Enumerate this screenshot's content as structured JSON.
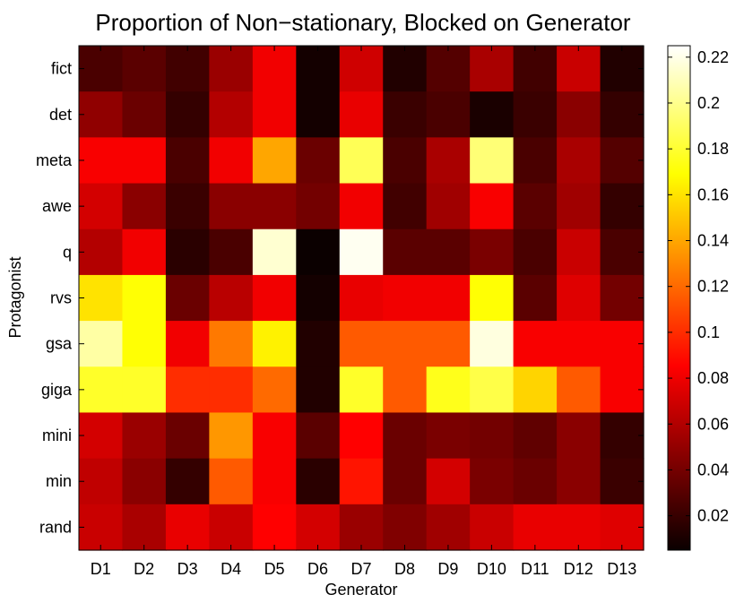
{
  "chart_data": {
    "type": "heatmap",
    "title": "Proportion of Non−stationary, Blocked on Generator",
    "xlabel": "Generator",
    "ylabel": "Protagonist",
    "x_categories": [
      "D1",
      "D2",
      "D3",
      "D4",
      "D5",
      "D6",
      "D7",
      "D8",
      "D9",
      "D10",
      "D11",
      "D12",
      "D13"
    ],
    "y_categories": [
      "fict",
      "det",
      "meta",
      "awe",
      "q",
      "rvs",
      "gsa",
      "giga",
      "mini",
      "min",
      "rand"
    ],
    "values": [
      [
        0.025,
        0.03,
        0.022,
        0.05,
        0.078,
        0.008,
        0.067,
        0.012,
        0.028,
        0.055,
        0.022,
        0.065,
        0.012
      ],
      [
        0.047,
        0.035,
        0.018,
        0.058,
        0.078,
        0.008,
        0.075,
        0.02,
        0.025,
        0.01,
        0.02,
        0.045,
        0.018
      ],
      [
        0.08,
        0.08,
        0.025,
        0.078,
        0.14,
        0.035,
        0.188,
        0.025,
        0.055,
        0.195,
        0.025,
        0.055,
        0.028
      ],
      [
        0.068,
        0.045,
        0.02,
        0.045,
        0.045,
        0.038,
        0.078,
        0.022,
        0.052,
        0.08,
        0.03,
        0.052,
        0.018
      ],
      [
        0.058,
        0.078,
        0.015,
        0.025,
        0.215,
        0.005,
        0.222,
        0.03,
        0.03,
        0.04,
        0.025,
        0.065,
        0.025
      ],
      [
        0.16,
        0.17,
        0.035,
        0.06,
        0.078,
        0.008,
        0.075,
        0.078,
        0.078,
        0.17,
        0.03,
        0.072,
        0.038
      ],
      [
        0.205,
        0.17,
        0.078,
        0.125,
        0.165,
        0.012,
        0.115,
        0.115,
        0.115,
        0.218,
        0.08,
        0.08,
        0.08
      ],
      [
        0.178,
        0.178,
        0.1,
        0.1,
        0.12,
        0.012,
        0.178,
        0.115,
        0.175,
        0.185,
        0.155,
        0.115,
        0.08
      ],
      [
        0.068,
        0.05,
        0.035,
        0.135,
        0.08,
        0.03,
        0.085,
        0.035,
        0.04,
        0.038,
        0.032,
        0.045,
        0.018
      ],
      [
        0.062,
        0.045,
        0.018,
        0.115,
        0.08,
        0.015,
        0.092,
        0.035,
        0.068,
        0.04,
        0.035,
        0.045,
        0.02
      ],
      [
        0.065,
        0.055,
        0.075,
        0.065,
        0.082,
        0.068,
        0.05,
        0.042,
        0.052,
        0.065,
        0.075,
        0.075,
        0.072
      ]
    ],
    "colormap": "hot",
    "clim": [
      0.005,
      0.225
    ],
    "colorbar_ticks": [
      0.02,
      0.04,
      0.06,
      0.08,
      0.1,
      0.12,
      0.14,
      0.16,
      0.18,
      0.2,
      0.22
    ],
    "colorbar_position": "right",
    "grid": false
  }
}
